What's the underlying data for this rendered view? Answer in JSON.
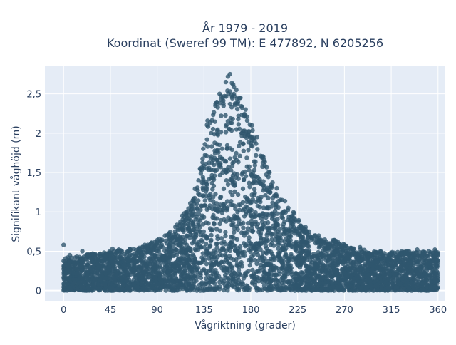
{
  "chart_data": {
    "type": "scatter",
    "title_line1": "År 1979 - 2019",
    "title_line2": "Koordinat (Sweref 99 TM): E 477892, N 6205256",
    "xlabel": "Vågriktning (grader)",
    "ylabel": "Signifikant våghöjd (m)",
    "xlim": [
      -18,
      367
    ],
    "ylim": [
      -0.13,
      2.85
    ],
    "xticks": [
      0,
      45,
      90,
      135,
      180,
      225,
      270,
      315,
      360
    ],
    "xtick_labels": [
      "0",
      "45",
      "90",
      "135",
      "180",
      "225",
      "270",
      "315",
      "360"
    ],
    "yticks": [
      0,
      0.5,
      1,
      1.5,
      2,
      2.5
    ],
    "ytick_labels": [
      "0",
      "0,5",
      "1",
      "1,5",
      "2",
      "2,5"
    ],
    "grid": true,
    "legend": "none",
    "colors": {
      "marker": "#2f566e",
      "plot_bg": "#e5ecf6",
      "grid": "#ffffff",
      "text": "#2a3f5f"
    },
    "envelope": [
      [
        0,
        0.42
      ],
      [
        20,
        0.45
      ],
      [
        45,
        0.5
      ],
      [
        75,
        0.55
      ],
      [
        100,
        0.72
      ],
      [
        120,
        1.05
      ],
      [
        130,
        1.45
      ],
      [
        140,
        2.3
      ],
      [
        150,
        2.5
      ],
      [
        160,
        2.75
      ],
      [
        170,
        2.45
      ],
      [
        180,
        2.1
      ],
      [
        190,
        1.75
      ],
      [
        200,
        1.45
      ],
      [
        215,
        1.1
      ],
      [
        230,
        0.85
      ],
      [
        245,
        0.7
      ],
      [
        260,
        0.65
      ],
      [
        275,
        0.55
      ],
      [
        300,
        0.5
      ],
      [
        330,
        0.5
      ],
      [
        360,
        0.5
      ]
    ],
    "points": [
      [
        0,
        0.58
      ],
      [
        2,
        0.33
      ],
      [
        6,
        0.45
      ],
      [
        12,
        0.27
      ],
      [
        18,
        0.5
      ],
      [
        23,
        0.46
      ],
      [
        28,
        0.47
      ],
      [
        35,
        0.3
      ],
      [
        44,
        0.3
      ],
      [
        47,
        0.53
      ],
      [
        53,
        0.52
      ],
      [
        58,
        0.33
      ],
      [
        66,
        0.45
      ],
      [
        72,
        0.5
      ],
      [
        78,
        0.58
      ],
      [
        86,
        0.45
      ],
      [
        90,
        0.62
      ],
      [
        96,
        0.38
      ],
      [
        102,
        0.68
      ],
      [
        108,
        0.72
      ],
      [
        114,
        0.78
      ],
      [
        122,
        1.0
      ],
      [
        128,
        1.1
      ],
      [
        134,
        1.2
      ],
      [
        138,
        1.55
      ],
      [
        142,
        2.0
      ],
      [
        146,
        2.35
      ],
      [
        150,
        2.5
      ],
      [
        153,
        2.45
      ],
      [
        156,
        2.65
      ],
      [
        158,
        2.72
      ],
      [
        160,
        2.75
      ],
      [
        163,
        2.62
      ],
      [
        166,
        2.55
      ],
      [
        170,
        2.45
      ],
      [
        175,
        2.3
      ],
      [
        181,
        2.1
      ],
      [
        186,
        1.95
      ],
      [
        192,
        1.7
      ],
      [
        198,
        1.5
      ],
      [
        205,
        1.3
      ],
      [
        210,
        1.15
      ],
      [
        216,
        1.05
      ],
      [
        222,
        0.88
      ],
      [
        228,
        0.82
      ],
      [
        236,
        0.75
      ],
      [
        242,
        0.7
      ],
      [
        250,
        0.62
      ],
      [
        256,
        0.6
      ],
      [
        262,
        0.63
      ],
      [
        268,
        0.52
      ],
      [
        276,
        0.53
      ],
      [
        285,
        0.55
      ],
      [
        296,
        0.45
      ],
      [
        305,
        0.46
      ],
      [
        318,
        0.48
      ],
      [
        325,
        0.47
      ],
      [
        340,
        0.52
      ],
      [
        348,
        0.4
      ],
      [
        357,
        0.52
      ],
      [
        358,
        0.22
      ],
      [
        359,
        0.12
      ],
      [
        1,
        0.1
      ],
      [
        10,
        0.1
      ],
      [
        40,
        0.08
      ],
      [
        95,
        0.05
      ],
      [
        150,
        0.02
      ],
      [
        200,
        0.01
      ],
      [
        260,
        0.0
      ],
      [
        300,
        0.06
      ],
      [
        345,
        0.09
      ]
    ]
  }
}
